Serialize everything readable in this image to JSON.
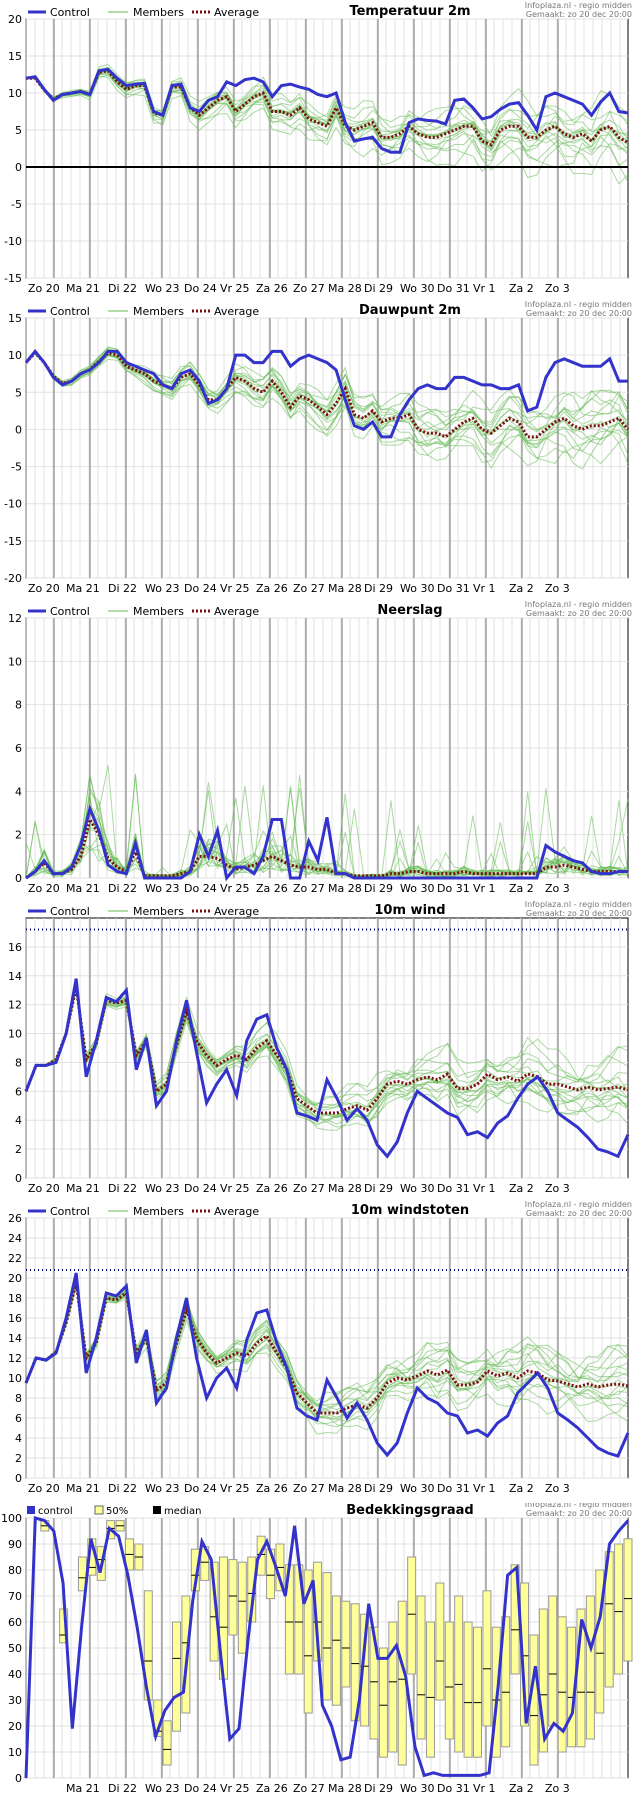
{
  "source": "Infoplaza.nl - regio midden",
  "made": "Gemaakt: zo 20 dec 20:00",
  "x_labels": [
    "Zo 20",
    "Ma 21",
    "Di 22",
    "Wo 23",
    "Do 24",
    "Vr 25",
    "Za 26",
    "Zo 27",
    "Ma 28",
    "Di 29",
    "Wo 30",
    "Do 31",
    "Vr 1",
    "Za 2",
    "Zo 3"
  ],
  "colors": {
    "control": "#3333cc",
    "members": "#66bb55",
    "average": "#7a1010",
    "box": "#ffff99",
    "threshold": "#000066"
  },
  "chart_data": [
    {
      "type": "line",
      "title": "Temperatuur 2m",
      "legend": [
        "Control",
        "Members",
        "Average"
      ],
      "ylim": [
        -15,
        20
      ],
      "yticks": [
        -15,
        -10,
        -5,
        0,
        5,
        10,
        15,
        20
      ],
      "zero_line": true,
      "series": [
        {
          "name": "Control",
          "values": [
            12,
            12.2,
            10.5,
            9,
            9.8,
            10,
            10.2,
            9.8,
            13,
            13.2,
            12,
            11,
            11.2,
            11.3,
            7.5,
            7,
            11,
            11.2,
            8,
            7.5,
            9,
            9.5,
            11.5,
            11,
            11.8,
            12,
            11.5,
            9.5,
            11,
            11.2,
            10.8,
            10.5,
            9.8,
            9.5,
            10,
            6,
            3.5,
            3.8,
            4,
            2.5,
            2,
            2,
            6,
            6.5,
            6.3,
            6.2,
            5.8,
            9,
            9.2,
            8,
            6.5,
            6.8,
            7.8,
            8.5,
            8.7,
            7,
            5,
            9.5,
            10,
            9.5,
            9,
            8.5,
            7,
            8.8,
            10,
            7.5,
            7.3
          ]
        },
        {
          "name": "Average",
          "values": [
            12,
            12,
            10.4,
            9.2,
            9.8,
            10,
            10.2,
            9.8,
            12.8,
            13,
            11.5,
            10.5,
            11,
            11,
            7.3,
            7,
            10.8,
            10.8,
            8,
            7,
            8,
            9,
            9.5,
            7.5,
            8.5,
            9.5,
            10,
            7.5,
            7.5,
            7,
            8,
            6.5,
            6,
            5.5,
            8,
            5.5,
            5,
            5.5,
            6,
            4,
            4,
            4.5,
            5.5,
            4.5,
            4,
            4,
            4.5,
            5,
            5.5,
            5.5,
            3.5,
            3,
            5,
            5.5,
            5.5,
            4,
            4,
            5,
            5.5,
            4.5,
            4,
            4.5,
            3.5,
            5,
            5.5,
            4,
            3.3
          ]
        }
      ]
    },
    {
      "type": "line",
      "title": "Dauwpunt 2m",
      "legend": [
        "Control",
        "Members",
        "Average"
      ],
      "ylim": [
        -20,
        15
      ],
      "yticks": [
        -20,
        -15,
        -10,
        -5,
        0,
        5,
        10,
        15
      ],
      "zero_line": false,
      "series": [
        {
          "name": "Control",
          "values": [
            9,
            10.5,
            9,
            7,
            6,
            6.5,
            7.5,
            8,
            9,
            10.5,
            10.5,
            9,
            8.5,
            8,
            7.5,
            6,
            5.5,
            7.5,
            8,
            6.5,
            3.5,
            4,
            5.5,
            10,
            10,
            9,
            9,
            10.5,
            10.5,
            8.5,
            9.5,
            10,
            9.5,
            9,
            8,
            4,
            0.5,
            0,
            1,
            -1,
            -1,
            2,
            4,
            5.5,
            6,
            5.5,
            5.5,
            7,
            7,
            6.5,
            6,
            6,
            5.5,
            5.5,
            6,
            2.5,
            3,
            7,
            9,
            9.5,
            9,
            8.5,
            8.5,
            8.5,
            9.5,
            6.5,
            6.5
          ]
        },
        {
          "name": "Average",
          "values": [
            9,
            10.3,
            9,
            7.2,
            6.2,
            6.5,
            7.5,
            8,
            9.2,
            10.3,
            10,
            8.5,
            8,
            7.5,
            6.5,
            6,
            5.5,
            7,
            7.5,
            6,
            4,
            4,
            5.5,
            7,
            6.5,
            5.5,
            5,
            6.5,
            5,
            3,
            4.5,
            4,
            3,
            2,
            3.5,
            5.5,
            2,
            1.5,
            2.5,
            1,
            1.5,
            1.5,
            2,
            0,
            -0.5,
            -0.5,
            -1,
            0,
            1,
            1.5,
            0,
            -0.5,
            0.5,
            1.5,
            1,
            -1,
            -1,
            0,
            1,
            1.5,
            0.5,
            0,
            0.5,
            0.5,
            1,
            1.5,
            0
          ]
        }
      ]
    },
    {
      "type": "line",
      "title": "Neerslag",
      "legend": [
        "Control",
        "Members",
        "Average"
      ],
      "ylim": [
        0,
        12
      ],
      "yticks": [
        0,
        2,
        4,
        6,
        8,
        10,
        12
      ],
      "zero_line": false,
      "series": [
        {
          "name": "Control",
          "values": [
            0,
            0.3,
            0.8,
            0.2,
            0.2,
            0.5,
            1.5,
            3.2,
            2.2,
            0.6,
            0.3,
            0.2,
            1.6,
            0,
            0,
            0,
            0,
            0,
            0.3,
            2,
            1,
            2.2,
            0,
            0.5,
            0.5,
            0.2,
            1,
            2.7,
            2.7,
            0,
            0,
            1.7,
            0.8,
            2.8,
            0.2,
            0.2,
            0,
            0,
            0,
            0,
            0,
            0,
            0,
            0,
            0,
            0,
            0,
            0,
            0,
            0,
            0,
            0,
            0,
            0,
            0,
            0,
            0,
            1.5,
            1.2,
            1,
            0.8,
            0.7,
            0.3,
            0.2,
            0.2,
            0.3,
            0.3
          ]
        },
        {
          "name": "Average",
          "values": [
            0,
            0.3,
            0.7,
            0.2,
            0.2,
            0.4,
            1,
            2.7,
            2,
            0.9,
            0.5,
            0.3,
            1.2,
            0.1,
            0.1,
            0.1,
            0.1,
            0.2,
            0.3,
            1,
            1,
            0.9,
            0.6,
            0.4,
            0.5,
            0.6,
            0.8,
            1,
            0.8,
            0.6,
            0.5,
            0.5,
            0.4,
            0.4,
            0.2,
            0.2,
            0.1,
            0.1,
            0.1,
            0.1,
            0.2,
            0.2,
            0.3,
            0.3,
            0.2,
            0.2,
            0.2,
            0.2,
            0.3,
            0.2,
            0.2,
            0.2,
            0.2,
            0.2,
            0.2,
            0.2,
            0.2,
            0.5,
            0.5,
            0.6,
            0.5,
            0.4,
            0.3,
            0.3,
            0.3,
            0.3,
            0.3
          ]
        }
      ]
    },
    {
      "type": "line",
      "title": "10m wind",
      "legend": [
        "Control",
        "Members",
        "Average"
      ],
      "ylim": [
        0,
        18
      ],
      "yticks": [
        0,
        2,
        4,
        6,
        8,
        10,
        12,
        14,
        16
      ],
      "threshold": 17.2,
      "zero_line": false,
      "series": [
        {
          "name": "Control",
          "values": [
            6,
            7.8,
            7.8,
            8,
            10,
            13.8,
            7,
            9.5,
            12.5,
            12.2,
            13,
            7.5,
            9.7,
            5,
            6,
            9.5,
            12.3,
            8.7,
            5.2,
            6.5,
            7.5,
            5.7,
            9.5,
            11,
            11.3,
            9,
            7.5,
            4.5,
            4.3,
            4,
            6.8,
            5.5,
            4,
            4.8,
            4,
            2.3,
            1.5,
            2.5,
            4.5,
            6,
            5.5,
            5,
            4.5,
            4.2,
            3,
            3.2,
            2.8,
            3.8,
            4.3,
            5.5,
            6.5,
            7,
            6,
            4.5,
            4,
            3.5,
            2.8,
            2,
            1.8,
            1.5,
            3
          ]
        },
        {
          "name": "Average",
          "values": [
            6,
            7.8,
            7.8,
            8.2,
            10,
            13.2,
            8.2,
            9.3,
            12.3,
            12.1,
            12.3,
            8.5,
            9.5,
            6,
            6.5,
            9.2,
            11.5,
            9.5,
            8.5,
            7.8,
            8.2,
            8.5,
            8.2,
            9,
            9.5,
            8.5,
            7.5,
            5.5,
            5,
            4.5,
            4.5,
            4.5,
            4.8,
            5,
            4.7,
            5.5,
            6.5,
            6.7,
            6.5,
            6.8,
            7,
            6.8,
            7.2,
            6.2,
            6.2,
            6.5,
            7.2,
            6.8,
            7,
            6.7,
            7.2,
            7,
            6.5,
            6.5,
            6.3,
            6.1,
            6.3,
            6.1,
            6.2,
            6.3,
            6.1
          ]
        }
      ]
    },
    {
      "type": "line",
      "title": "10m windstoten",
      "legend": [
        "Control",
        "Members",
        "Average"
      ],
      "ylim": [
        0,
        26
      ],
      "yticks": [
        0,
        2,
        4,
        6,
        8,
        10,
        12,
        14,
        16,
        18,
        20,
        22,
        24,
        26
      ],
      "threshold": 20.8,
      "zero_line": false,
      "series": [
        {
          "name": "Control",
          "values": [
            9.5,
            12,
            11.8,
            12.5,
            16,
            20.5,
            10.5,
            14,
            18.5,
            18.2,
            19.2,
            11.5,
            14.8,
            7.5,
            9,
            14,
            18,
            12,
            8,
            10,
            11,
            9,
            13.8,
            16.5,
            16.8,
            13.5,
            11,
            7,
            6.2,
            5.8,
            9.8,
            8,
            6,
            7.5,
            5.8,
            3.5,
            2.3,
            3.5,
            6.5,
            9,
            8,
            7.5,
            6.5,
            6.2,
            4.5,
            4.8,
            4.2,
            5.5,
            6.2,
            8.5,
            9.5,
            10.5,
            9,
            6.5,
            5.8,
            5,
            4,
            3,
            2.5,
            2.2,
            4.5
          ]
        },
        {
          "name": "Average",
          "values": [
            9.5,
            12,
            11.8,
            12.6,
            15.5,
            19.5,
            12,
            13.5,
            18,
            17.8,
            18.5,
            12.5,
            14,
            8.8,
            9.5,
            13.5,
            16.8,
            14,
            12.5,
            11.5,
            12,
            12.5,
            12.2,
            13.5,
            14.2,
            12.5,
            11,
            8.5,
            7.5,
            6.5,
            6.5,
            6.5,
            7,
            7.3,
            7,
            8,
            9.5,
            10,
            9.8,
            10.2,
            10.7,
            10.3,
            10.8,
            9.3,
            9.3,
            9.6,
            10.7,
            10.2,
            10.5,
            10,
            10.7,
            10.5,
            9.8,
            9.7,
            9.4,
            9.1,
            9.4,
            9.1,
            9.3,
            9.4,
            9.2
          ]
        }
      ]
    },
    {
      "type": "line",
      "title": "Bedekkingsgraad",
      "legend": [
        "control",
        "50%",
        "median"
      ],
      "ylim": [
        0,
        100
      ],
      "yticks": [
        0,
        10,
        20,
        30,
        40,
        50,
        60,
        70,
        80,
        90,
        100
      ],
      "zero_line": false,
      "series": [
        {
          "name": "control",
          "values": [
            0,
            100,
            99,
            95,
            75,
            19,
            58,
            92,
            79,
            96,
            93,
            78,
            58,
            35,
            16,
            26,
            31,
            33,
            68,
            91,
            84,
            48,
            15,
            19,
            54,
            84,
            91,
            81,
            70,
            97,
            67,
            76,
            28,
            20,
            7,
            8,
            30,
            67,
            46,
            46,
            51,
            39,
            12,
            1,
            2,
            1,
            1,
            1,
            1,
            1,
            2,
            36,
            78,
            81,
            21,
            43,
            15,
            21,
            18,
            25,
            61,
            50,
            62,
            90,
            95,
            99
          ]
        },
        {
          "name": "median",
          "values": [
            null,
            null,
            97,
            null,
            55,
            null,
            77,
            81,
            84,
            96,
            97,
            86,
            85,
            45,
            18,
            11,
            46,
            52,
            78,
            83,
            62,
            58,
            70,
            68,
            71,
            86,
            78,
            81,
            60,
            60,
            47,
            60,
            50,
            53,
            50,
            44,
            43,
            37,
            28,
            37,
            38,
            63,
            32,
            31,
            45,
            35,
            36,
            29,
            29,
            42,
            30,
            33,
            57,
            47,
            24,
            32,
            40,
            33,
            31,
            33,
            33,
            48,
            67,
            64,
            69
          ]
        }
      ],
      "box_ranges": [
        [
          null,
          null
        ],
        [
          null,
          null
        ],
        [
          95,
          99
        ],
        [
          null,
          null
        ],
        [
          52,
          65
        ],
        [
          null,
          null
        ],
        [
          72,
          85
        ],
        [
          78,
          92
        ],
        [
          76,
          89
        ],
        [
          92,
          99
        ],
        [
          95,
          99
        ],
        [
          80,
          92
        ],
        [
          80,
          90
        ],
        [
          30,
          72
        ],
        [
          16,
          30
        ],
        [
          5,
          22
        ],
        [
          18,
          60
        ],
        [
          25,
          70
        ],
        [
          72,
          88
        ],
        [
          76,
          89
        ],
        [
          45,
          83
        ],
        [
          38,
          85
        ],
        [
          55,
          84
        ],
        [
          48,
          83
        ],
        [
          60,
          85
        ],
        [
          78,
          93
        ],
        [
          69,
          88
        ],
        [
          72,
          90
        ],
        [
          40,
          82
        ],
        [
          40,
          82
        ],
        [
          25,
          80
        ],
        [
          45,
          83
        ],
        [
          30,
          79
        ],
        [
          28,
          70
        ],
        [
          35,
          68
        ],
        [
          22,
          67
        ],
        [
          20,
          63
        ],
        [
          15,
          58
        ],
        [
          8,
          50
        ],
        [
          10,
          60
        ],
        [
          5,
          68
        ],
        [
          40,
          85
        ],
        [
          15,
          70
        ],
        [
          8,
          60
        ],
        [
          30,
          75
        ],
        [
          15,
          60
        ],
        [
          10,
          70
        ],
        [
          8,
          60
        ],
        [
          8,
          58
        ],
        [
          20,
          72
        ],
        [
          8,
          58
        ],
        [
          12,
          62
        ],
        [
          40,
          82
        ],
        [
          20,
          75
        ],
        [
          5,
          55
        ],
        [
          10,
          65
        ],
        [
          20,
          70
        ],
        [
          10,
          62
        ],
        [
          12,
          58
        ],
        [
          12,
          65
        ],
        [
          15,
          70
        ],
        [
          25,
          80
        ],
        [
          35,
          87
        ],
        [
          40,
          90
        ],
        [
          45,
          92
        ]
      ]
    }
  ]
}
